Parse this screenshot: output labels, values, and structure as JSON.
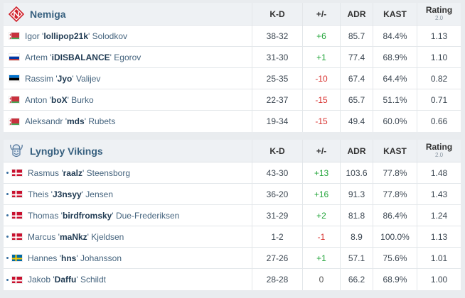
{
  "columns": {
    "kd": "K-D",
    "pm": "+/-",
    "adr": "ADR",
    "kast": "KAST",
    "rating": "Rating",
    "rating_sub": "2.0"
  },
  "teams": [
    {
      "name": "Nemiga",
      "logo_icon": "nemiga-logo-icon",
      "players": [
        {
          "first": "Igor '",
          "nick": "lollipop21k",
          "last": "' Solodkov",
          "flag": "belarus",
          "kd": "38-32",
          "pm": "+6",
          "pm_sign": "pos",
          "adr": "85.7",
          "kast": "84.4%",
          "rating": "1.13"
        },
        {
          "first": "Artem '",
          "nick": "iDISBALANCE",
          "last": "' Egorov",
          "flag": "russia",
          "kd": "31-30",
          "pm": "+1",
          "pm_sign": "pos",
          "adr": "77.4",
          "kast": "68.9%",
          "rating": "1.10"
        },
        {
          "first": "Rassim '",
          "nick": "Jyo",
          "last": "' Valijev",
          "flag": "estonia",
          "kd": "25-35",
          "pm": "-10",
          "pm_sign": "neg",
          "adr": "67.4",
          "kast": "64.4%",
          "rating": "0.82"
        },
        {
          "first": "Anton '",
          "nick": "boX",
          "last": "' Burko",
          "flag": "belarus",
          "kd": "22-37",
          "pm": "-15",
          "pm_sign": "neg",
          "adr": "65.7",
          "kast": "51.1%",
          "rating": "0.71"
        },
        {
          "first": "Aleksandr '",
          "nick": "mds",
          "last": "' Rubets",
          "flag": "belarus",
          "kd": "19-34",
          "pm": "-15",
          "pm_sign": "neg",
          "adr": "49.4",
          "kast": "60.0%",
          "rating": "0.66"
        }
      ]
    },
    {
      "name": "Lyngby Vikings",
      "logo_icon": "viking-head-logo-icon",
      "players": [
        {
          "first": "Rasmus '",
          "nick": "raalz",
          "last": "' Steensborg",
          "flag": "denmark",
          "kd": "43-30",
          "pm": "+13",
          "pm_sign": "pos",
          "adr": "103.6",
          "kast": "77.8%",
          "rating": "1.48"
        },
        {
          "first": "Theis '",
          "nick": "J3nsyy",
          "last": "' Jensen",
          "flag": "denmark",
          "kd": "36-20",
          "pm": "+16",
          "pm_sign": "pos",
          "adr": "91.3",
          "kast": "77.8%",
          "rating": "1.43"
        },
        {
          "first": "Thomas '",
          "nick": "birdfromsky",
          "last": "' Due-Frederiksen",
          "flag": "denmark",
          "kd": "31-29",
          "pm": "+2",
          "pm_sign": "pos",
          "adr": "81.8",
          "kast": "86.4%",
          "rating": "1.24"
        },
        {
          "first": "Marcus '",
          "nick": "maNkz",
          "last": "' Kjeldsen",
          "flag": "denmark",
          "kd": "1-2",
          "pm": "-1",
          "pm_sign": "neg",
          "adr": "8.9",
          "kast": "100.0%",
          "rating": "1.13"
        },
        {
          "first": "Hannes '",
          "nick": "hns",
          "last": "' Johansson",
          "flag": "sweden",
          "kd": "27-26",
          "pm": "+1",
          "pm_sign": "pos",
          "adr": "57.1",
          "kast": "75.6%",
          "rating": "1.01"
        },
        {
          "first": "Jakob '",
          "nick": "Daffu",
          "last": "' Schildt",
          "flag": "denmark",
          "kd": "28-28",
          "pm": "0",
          "pm_sign": "zero",
          "adr": "66.2",
          "kast": "68.9%",
          "rating": "1.00"
        }
      ]
    }
  ]
}
